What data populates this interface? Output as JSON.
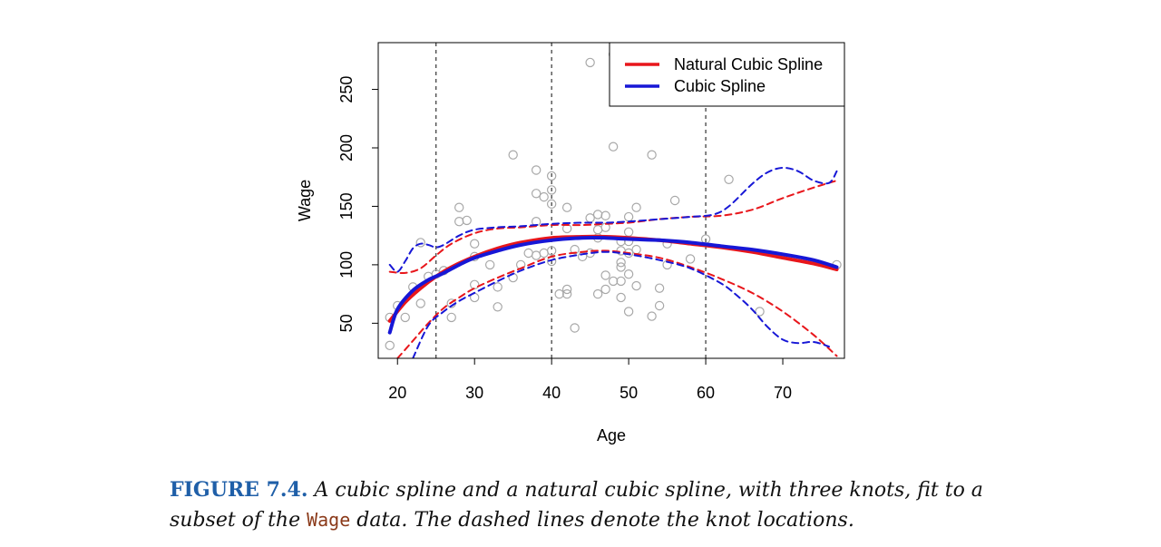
{
  "chart_data": {
    "type": "scatter",
    "xlabel": "Age",
    "ylabel": "Wage",
    "xlim": [
      17.5,
      78
    ],
    "ylim": [
      20,
      290
    ],
    "xticks": [
      20,
      30,
      40,
      50,
      60,
      70
    ],
    "yticks": [
      50,
      100,
      150,
      200,
      250
    ],
    "knots": [
      25,
      40,
      60
    ],
    "legend": {
      "position": "top-right",
      "entries": [
        {
          "name": "Natural Cubic Spline",
          "color": "#e8161b"
        },
        {
          "name": "Cubic Spline",
          "color": "#1717d6"
        }
      ]
    },
    "points": [
      [
        19,
        31
      ],
      [
        19,
        55
      ],
      [
        20,
        65
      ],
      [
        21,
        55
      ],
      [
        22,
        81
      ],
      [
        23,
        119
      ],
      [
        23,
        67
      ],
      [
        24,
        90
      ],
      [
        25,
        92
      ],
      [
        26,
        95
      ],
      [
        27,
        67
      ],
      [
        27,
        55
      ],
      [
        28,
        149
      ],
      [
        28,
        137
      ],
      [
        29,
        138
      ],
      [
        30,
        118
      ],
      [
        30,
        107
      ],
      [
        30,
        83
      ],
      [
        30,
        72
      ],
      [
        32,
        100
      ],
      [
        33,
        81
      ],
      [
        33,
        64
      ],
      [
        35,
        194
      ],
      [
        35,
        89
      ],
      [
        36,
        100
      ],
      [
        37,
        110
      ],
      [
        38,
        181
      ],
      [
        38,
        161
      ],
      [
        38,
        137
      ],
      [
        38,
        108
      ],
      [
        39,
        158
      ],
      [
        39,
        110
      ],
      [
        40,
        176
      ],
      [
        40,
        164
      ],
      [
        40,
        152
      ],
      [
        40,
        112
      ],
      [
        40,
        103
      ],
      [
        41,
        75
      ],
      [
        42,
        149
      ],
      [
        42,
        131
      ],
      [
        42,
        79
      ],
      [
        42,
        75
      ],
      [
        43,
        46
      ],
      [
        43,
        113
      ],
      [
        44,
        107
      ],
      [
        45,
        273
      ],
      [
        45,
        140
      ],
      [
        45,
        110
      ],
      [
        46,
        143
      ],
      [
        46,
        130
      ],
      [
        46,
        123
      ],
      [
        46,
        75
      ],
      [
        47,
        91
      ],
      [
        47,
        79
      ],
      [
        47,
        142
      ],
      [
        47,
        132
      ],
      [
        48,
        280
      ],
      [
        48,
        201
      ],
      [
        48,
        86
      ],
      [
        49,
        120
      ],
      [
        49,
        112
      ],
      [
        49,
        102
      ],
      [
        49,
        98
      ],
      [
        49,
        86
      ],
      [
        49,
        72
      ],
      [
        50,
        141
      ],
      [
        50,
        128
      ],
      [
        50,
        120
      ],
      [
        50,
        110
      ],
      [
        50,
        92
      ],
      [
        50,
        60
      ],
      [
        51,
        283
      ],
      [
        51,
        149
      ],
      [
        51,
        113
      ],
      [
        51,
        82
      ],
      [
        53,
        194
      ],
      [
        53,
        56
      ],
      [
        54,
        80
      ],
      [
        54,
        65
      ],
      [
        55,
        118
      ],
      [
        55,
        100
      ],
      [
        56,
        155
      ],
      [
        58,
        105
      ],
      [
        60,
        122
      ],
      [
        63,
        173
      ],
      [
        67,
        60
      ],
      [
        77,
        100
      ]
    ],
    "series": [
      {
        "name": "Natural Cubic Spline",
        "color": "#e8161b",
        "style": "solid",
        "x": [
          19,
          21,
          23,
          25,
          27,
          30,
          33,
          36,
          40,
          44,
          47,
          50,
          54,
          58,
          62,
          66,
          70,
          74,
          77
        ],
        "y": [
          52,
          68,
          80,
          90,
          98,
          107,
          114,
          119,
          123,
          124,
          124,
          123,
          121,
          118,
          115,
          111,
          106,
          101,
          96
        ]
      },
      {
        "name": "Cubic Spline",
        "color": "#1717d6",
        "style": "solid",
        "x": [
          19,
          20,
          22,
          24,
          26,
          28,
          30,
          33,
          36,
          40,
          44,
          47,
          50,
          54,
          58,
          62,
          66,
          70,
          74,
          77
        ],
        "y": [
          42,
          62,
          78,
          87,
          93,
          100,
          106,
          112,
          117,
          121,
          123,
          123,
          122,
          121,
          119,
          116,
          113,
          109,
          104,
          98
        ]
      },
      {
        "name": "Natural Cubic Spline",
        "color": "#e8161b",
        "style": "dashed",
        "x": [
          19,
          21,
          23,
          25,
          27,
          30,
          33,
          36,
          40,
          44,
          47,
          50,
          54,
          58,
          62,
          66,
          70,
          74,
          77
        ],
        "y": [
          94,
          93,
          97,
          108,
          118,
          127,
          131,
          132,
          134,
          134,
          135,
          136,
          139,
          141,
          142,
          147,
          157,
          166,
          172
        ]
      },
      {
        "name": "Cubic Spline",
        "color": "#1717d6",
        "style": "dashed",
        "x": [
          19,
          20,
          21,
          22,
          23,
          24,
          25,
          26,
          28,
          30,
          33,
          36,
          40,
          44,
          47,
          50,
          54,
          58,
          61,
          63,
          66,
          68,
          70,
          72,
          74,
          76,
          77
        ],
        "y": [
          100,
          94,
          103,
          114,
          118,
          117,
          115,
          117,
          125,
          130,
          132,
          133,
          135,
          136,
          136,
          137,
          139,
          141,
          143,
          150,
          169,
          179,
          183,
          180,
          172,
          170,
          180
        ]
      },
      {
        "name": "Natural Cubic Spline",
        "color": "#e8161b",
        "style": "dashed",
        "x": [
          20,
          22,
          24,
          26,
          28,
          30,
          33,
          36,
          40,
          44,
          47,
          50,
          54,
          58,
          62,
          66,
          70,
          74,
          77
        ],
        "y": [
          20,
          35,
          50,
          63,
          72,
          80,
          89,
          97,
          107,
          111,
          112,
          110,
          106,
          98,
          88,
          76,
          60,
          40,
          22
        ]
      },
      {
        "name": "Cubic Spline",
        "color": "#1717d6",
        "style": "dashed",
        "x": [
          22,
          24,
          26,
          28,
          30,
          33,
          36,
          40,
          44,
          47,
          50,
          54,
          58,
          62,
          64,
          66,
          68,
          70,
          72,
          74,
          76
        ],
        "y": [
          20,
          48,
          60,
          69,
          76,
          86,
          95,
          104,
          109,
          111,
          109,
          104,
          97,
          84,
          74,
          62,
          47,
          36,
          33,
          34,
          30
        ]
      }
    ]
  },
  "caption": {
    "label": "FIGURE 7.4.",
    "text_before": " A cubic spline and a natural cubic spline, with three knots, fit to a subset of the ",
    "code": "Wage",
    "text_after": " data. The dashed lines denote the knot locations."
  }
}
